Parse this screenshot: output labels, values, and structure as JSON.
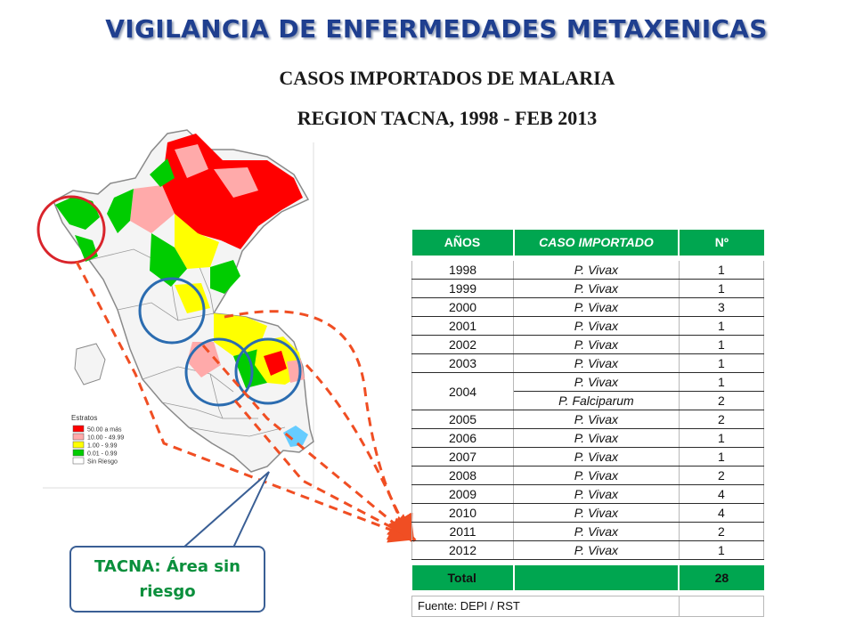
{
  "header": {
    "title": "VIGILANCIA DE ENFERMEDADES METAXENICAS",
    "subtitle_1": "CASOS IMPORTADOS DE MALARIA",
    "subtitle_2": "REGION TACNA, 1998  - FEB 2013"
  },
  "legend": {
    "title": "Estratos",
    "items": [
      {
        "label": "50.00  a más",
        "color": "#ff0000"
      },
      {
        "label": "10.00 - 49.99",
        "color": "#ffaaaa"
      },
      {
        "label": "1.00 - 9.99",
        "color": "#ffff00"
      },
      {
        "label": "0.01 - 0.99",
        "color": "#00cc00"
      },
      {
        "label": "Sin Riesgo",
        "color": "#ffffff"
      }
    ]
  },
  "table": {
    "headers": [
      "AÑOS",
      "CASO IMPORTADO",
      "Nº"
    ],
    "rows": [
      {
        "year": "1998",
        "case": "P. Vivax",
        "n": "1"
      },
      {
        "year": "1999",
        "case": "P. Vivax",
        "n": "1"
      },
      {
        "year": "2000",
        "case": "P. Vivax",
        "n": "3"
      },
      {
        "year": "2001",
        "case": "P. Vivax",
        "n": "1"
      },
      {
        "year": "2002",
        "case": "P. Vivax",
        "n": "1"
      },
      {
        "year": "2003",
        "case": "P. Vivax",
        "n": "1"
      },
      {
        "year": "2004",
        "case": "P. Vivax",
        "n": "1"
      },
      {
        "year": "",
        "case": "P. Falciparum",
        "n": "2"
      },
      {
        "year": "2005",
        "case": "P. Vivax",
        "n": "2"
      },
      {
        "year": "2006",
        "case": "P. Vivax",
        "n": "1"
      },
      {
        "year": "2007",
        "case": "P. Vivax",
        "n": "1"
      },
      {
        "year": "2008",
        "case": "P. Vivax",
        "n": "2"
      },
      {
        "year": "2009",
        "case": "P. Vivax",
        "n": "4"
      },
      {
        "year": "2010",
        "case": "P. Vivax",
        "n": "4"
      },
      {
        "year": "2011",
        "case": "P. Vivax",
        "n": "2"
      },
      {
        "year": "2012",
        "case": "P. Vivax",
        "n": "1"
      }
    ],
    "total_label": "Total",
    "total_value": "28",
    "source": "Fuente:  DEPI / RST"
  },
  "callout": {
    "line_1": "TACNA: Área sin",
    "line_2": "riesgo"
  },
  "colors": {
    "title": "#1f3f8f",
    "table_header": "#00a650",
    "callout_text": "#0a8f3c",
    "callout_border": "#3a5f95",
    "arrow": "#f04e23",
    "circle_red": "#d9242b",
    "circle_blue": "#2b6cb0"
  }
}
